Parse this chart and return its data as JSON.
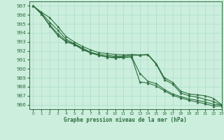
{
  "title": "Graphe pression niveau de la mer (hPa)",
  "bg_color": "#cceedd",
  "grid_color": "#aaddcc",
  "line_color": "#2d6e3e",
  "marker_color": "#2d6e3e",
  "xlim": [
    -0.5,
    23
  ],
  "ylim": [
    985.5,
    997.5
  ],
  "yticks": [
    986,
    987,
    988,
    989,
    990,
    991,
    992,
    993,
    994,
    995,
    996,
    997
  ],
  "xticks": [
    0,
    1,
    2,
    3,
    4,
    5,
    6,
    7,
    8,
    9,
    10,
    11,
    12,
    13,
    14,
    15,
    16,
    17,
    18,
    19,
    20,
    21,
    22,
    23
  ],
  "lines": [
    [
      997.0,
      996.3,
      995.7,
      994.7,
      993.6,
      993.0,
      992.5,
      992.1,
      991.8,
      991.7,
      991.6,
      991.55,
      991.6,
      991.55,
      991.6,
      990.6,
      989.0,
      988.5,
      987.5,
      987.2,
      987.1,
      987.0,
      986.7,
      986.0
    ],
    [
      997.0,
      996.2,
      995.2,
      994.3,
      993.3,
      992.8,
      992.3,
      991.85,
      991.6,
      991.5,
      991.4,
      991.4,
      991.5,
      991.5,
      991.55,
      990.5,
      988.8,
      988.3,
      987.3,
      987.0,
      986.85,
      986.6,
      986.35,
      985.95
    ],
    [
      997.0,
      996.1,
      994.9,
      993.9,
      993.1,
      992.75,
      992.2,
      991.8,
      991.5,
      991.35,
      991.3,
      991.3,
      991.35,
      989.5,
      988.6,
      988.35,
      987.7,
      987.2,
      986.9,
      986.65,
      986.5,
      986.3,
      986.05,
      985.95
    ],
    [
      997.0,
      996.1,
      994.8,
      993.7,
      993.0,
      992.7,
      992.15,
      991.75,
      991.5,
      991.3,
      991.2,
      991.25,
      991.3,
      988.55,
      988.4,
      988.1,
      987.55,
      987.05,
      986.75,
      986.5,
      986.3,
      986.1,
      985.85,
      985.85
    ]
  ]
}
